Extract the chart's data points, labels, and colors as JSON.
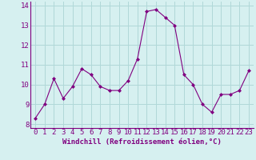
{
  "x": [
    0,
    1,
    2,
    3,
    4,
    5,
    6,
    7,
    8,
    9,
    10,
    11,
    12,
    13,
    14,
    15,
    16,
    17,
    18,
    19,
    20,
    21,
    22,
    23
  ],
  "y": [
    8.3,
    9.0,
    10.3,
    9.3,
    9.9,
    10.8,
    10.5,
    9.9,
    9.7,
    9.7,
    10.2,
    11.3,
    13.7,
    13.8,
    13.4,
    13.0,
    10.5,
    10.0,
    9.0,
    8.6,
    9.5,
    9.5,
    9.7,
    10.7
  ],
  "line_color": "#800080",
  "marker": "D",
  "marker_size": 2,
  "bg_color": "#d6f0f0",
  "xlabel": "Windchill (Refroidissement éolien,°C)",
  "xlim": [
    -0.5,
    23.5
  ],
  "ylim": [
    7.8,
    14.2
  ],
  "xtick_labels": [
    "0",
    "1",
    "2",
    "3",
    "4",
    "5",
    "6",
    "7",
    "8",
    "9",
    "10",
    "11",
    "12",
    "13",
    "14",
    "15",
    "16",
    "17",
    "18",
    "19",
    "20",
    "21",
    "22",
    "23"
  ],
  "ytick_values": [
    8,
    9,
    10,
    11,
    12,
    13,
    14
  ],
  "grid_color": "#b0d8d8",
  "xlabel_fontsize": 6.5,
  "tick_fontsize": 6.5,
  "line_width": 0.8
}
